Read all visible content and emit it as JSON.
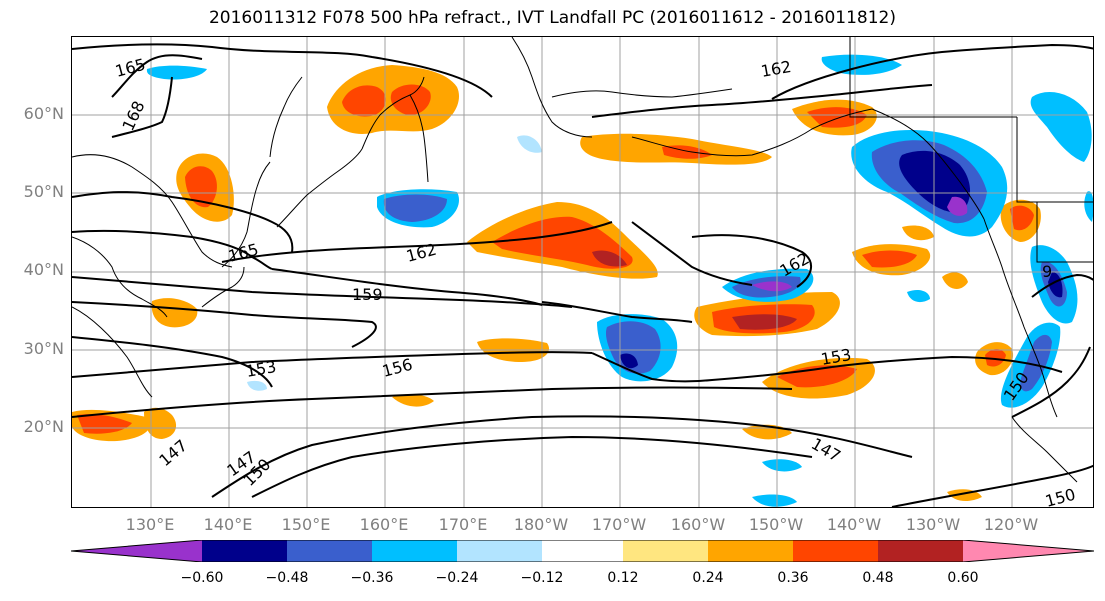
{
  "title": "2016011312 F078 500 hPa refract., IVT Landfall PC (2016011612 - 2016011812)",
  "lat_labels": [
    "60°N",
    "50°N",
    "40°N",
    "30°N",
    "20°N"
  ],
  "lon_labels": [
    "130°E",
    "140°E",
    "150°E",
    "160°E",
    "170°E",
    "180°W",
    "170°W",
    "160°W",
    "150°W",
    "140°W",
    "130°W",
    "120°W"
  ],
  "contour_labels": [
    "165",
    "168",
    "162",
    "162",
    "159",
    "153",
    "156",
    "165",
    "162",
    "153",
    "147",
    "147",
    "150",
    "150",
    "150",
    "9"
  ],
  "colorbar": {
    "ticks": [
      "−0.60",
      "−0.48",
      "−0.36",
      "−0.24",
      "−0.12",
      "0.12",
      "0.24",
      "0.36",
      "0.48",
      "0.60"
    ],
    "colors": [
      "#9932cc",
      "#00008b",
      "#3a5fcd",
      "#00bfff",
      "#b2e4ff",
      "#ffffff",
      "#ffe680",
      "#ffa500",
      "#ff4500",
      "#b22222",
      "#ff88b0"
    ]
  },
  "colors": {
    "grid": "#a0a0a0",
    "axis_text": "#808080",
    "coast": "#000000"
  }
}
